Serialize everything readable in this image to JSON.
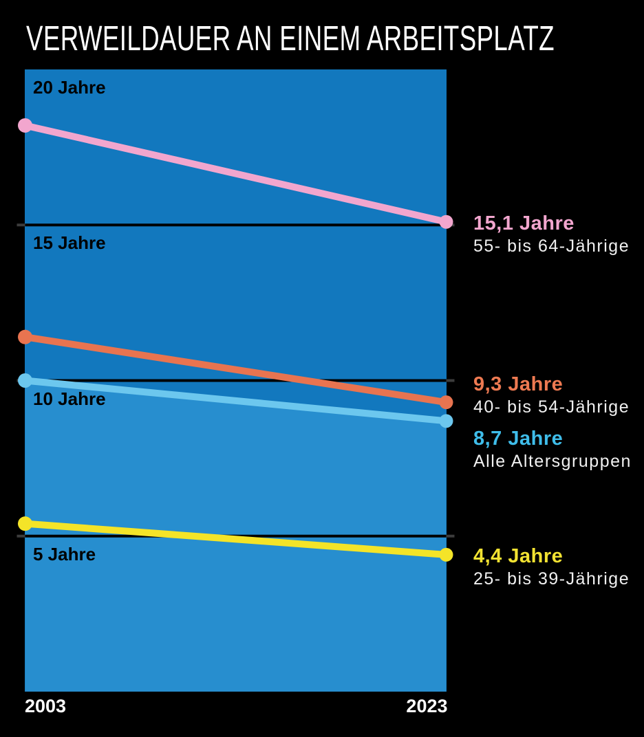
{
  "title": "VERWEILDAUER AN EINEM ARBEITSPLATZ",
  "colors": {
    "background": "#000000",
    "panel_blue": "#1278be",
    "area_fill_blue": "#278ecf",
    "gridline": "#000000",
    "gridline_stub": "#3c3c3c",
    "tick_text": "#000000",
    "axis_text": "#ffffff",
    "subtitle_text": "#f0f0f0"
  },
  "chart_data": {
    "type": "line",
    "title": "VERWEILDAUER AN EINEM ARBEITSPLATZ",
    "x": [
      2003,
      2023
    ],
    "x_tick_labels": [
      "2003",
      "2023"
    ],
    "ylim": [
      0,
      20
    ],
    "unit": "Jahre",
    "grid": true,
    "legend_position": "right-annotations",
    "y_ticks": [
      {
        "value": 20,
        "label": "20 Jahre",
        "line": false
      },
      {
        "value": 15,
        "label": "15 Jahre",
        "line": true
      },
      {
        "value": 10,
        "label": "10 Jahre",
        "line": true
      },
      {
        "value": 5,
        "label": "5 Jahre",
        "line": true
      }
    ],
    "series": [
      {
        "name": "55- bis 64-Jährige",
        "values": [
          18.2,
          15.1
        ],
        "end_label": "15,1 Jahre",
        "color": "#f2a6ce",
        "label_color": "#f2a6ce",
        "area_fill": false,
        "label_dy": -14
      },
      {
        "name": "40- bis 54-Jährige",
        "values": [
          11.4,
          9.3
        ],
        "end_label": "9,3 Jahre",
        "color": "#e87450",
        "label_color": "#ee7a52",
        "area_fill": false,
        "label_dy": -42
      },
      {
        "name": "Alle Altersgruppen",
        "values": [
          10.0,
          8.7
        ],
        "end_label": "8,7 Jahre",
        "color": "#6cc7ee",
        "label_color": "#3fbdea",
        "area_fill": true,
        "label_dy": 10
      },
      {
        "name": "25- bis 39-Jährige",
        "values": [
          5.4,
          4.4
        ],
        "end_label": "4,4 Jahre",
        "color": "#f4e428",
        "label_color": "#f2e232",
        "area_fill": false,
        "label_dy": -14
      }
    ]
  }
}
